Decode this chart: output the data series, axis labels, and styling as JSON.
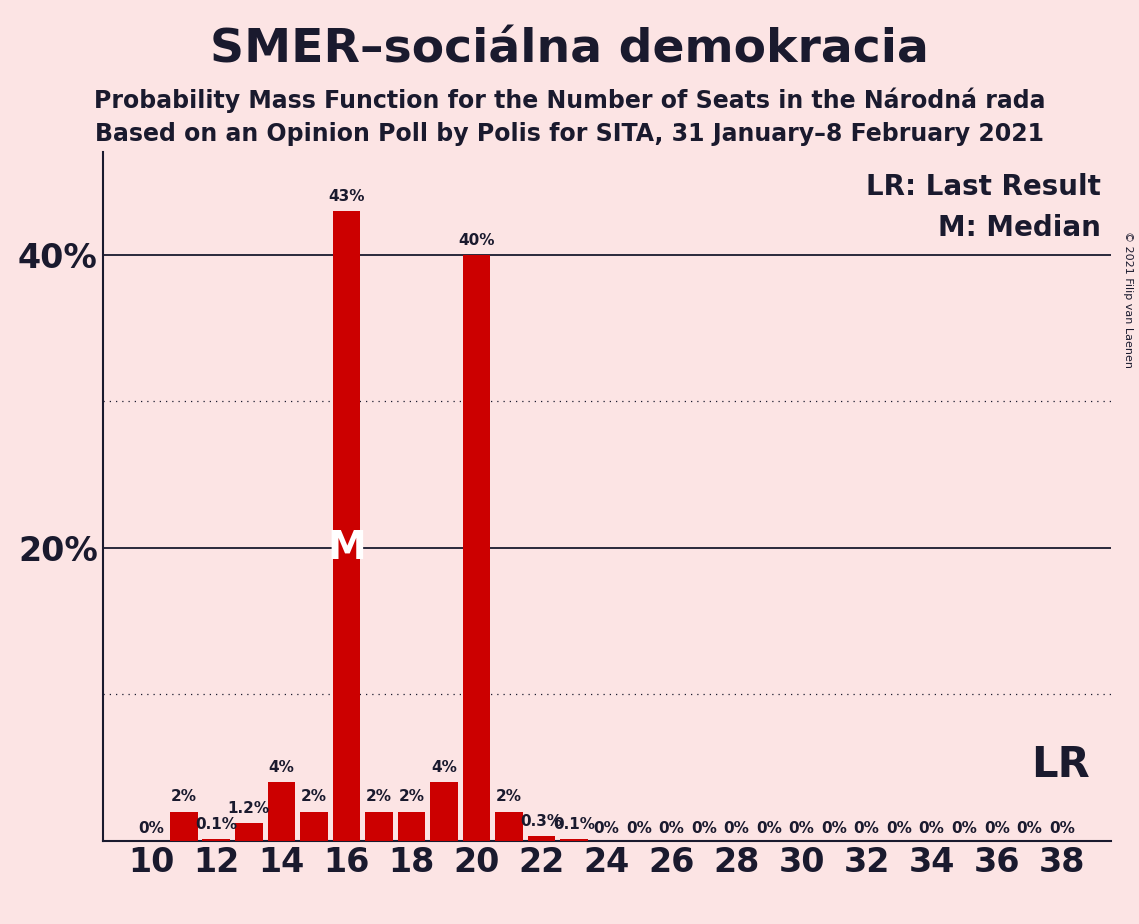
{
  "title": "SMER–sociálna demokracia",
  "subtitle1": "Probability Mass Function for the Number of Seats in the Národná rada",
  "subtitle2": "Based on an Opinion Poll by Polis for SITA, 31 January–8 February 2021",
  "copyright": "© 2021 Filip van Laenen",
  "seats": [
    10,
    11,
    12,
    13,
    14,
    15,
    16,
    17,
    18,
    19,
    20,
    21,
    22,
    23,
    24,
    25,
    26,
    27,
    28,
    29,
    30,
    31,
    32,
    33,
    34,
    35,
    36,
    37,
    38
  ],
  "probabilities": [
    0.0,
    2.0,
    0.1,
    1.2,
    4.0,
    2.0,
    43.0,
    2.0,
    2.0,
    4.0,
    40.0,
    2.0,
    0.3,
    0.1,
    0.0,
    0.0,
    0.0,
    0.0,
    0.0,
    0.0,
    0.0,
    0.0,
    0.0,
    0.0,
    0.0,
    0.0,
    0.0,
    0.0,
    0.0
  ],
  "labels": [
    "0%",
    "2%",
    "0.1%",
    "1.2%",
    "4%",
    "2%",
    "43%",
    "2%",
    "2%",
    "4%",
    "40%",
    "2%",
    "0.3%",
    "0.1%",
    "0%",
    "0%",
    "0%",
    "0%",
    "0%",
    "0%",
    "0%",
    "0%",
    "0%",
    "0%",
    "0%",
    "0%",
    "0%",
    "0%",
    "0%"
  ],
  "xtick_labels": [
    "10",
    "12",
    "14",
    "16",
    "18",
    "20",
    "22",
    "24",
    "26",
    "28",
    "30",
    "32",
    "34",
    "36",
    "38"
  ],
  "xtick_positions": [
    10,
    12,
    14,
    16,
    18,
    20,
    22,
    24,
    26,
    28,
    30,
    32,
    34,
    36,
    38
  ],
  "bar_color": "#cc0000",
  "background_color": "#fce4e4",
  "ytick_labels": [
    "20%",
    "40%"
  ],
  "ytick_values": [
    20,
    40
  ],
  "ylim": [
    0,
    47
  ],
  "solid_gridlines": [
    20,
    40
  ],
  "dotted_gridlines": [
    10,
    30
  ],
  "median_seat": 16,
  "median_label": "M",
  "lr_label": "LR",
  "legend_lr": "LR: Last Result",
  "legend_m": "M: Median",
  "title_fontsize": 34,
  "subtitle_fontsize": 17,
  "axis_tick_fontsize": 24,
  "bar_label_fontsize": 11,
  "legend_fontsize": 20,
  "lr_fontsize": 30,
  "copyright_fontsize": 8
}
